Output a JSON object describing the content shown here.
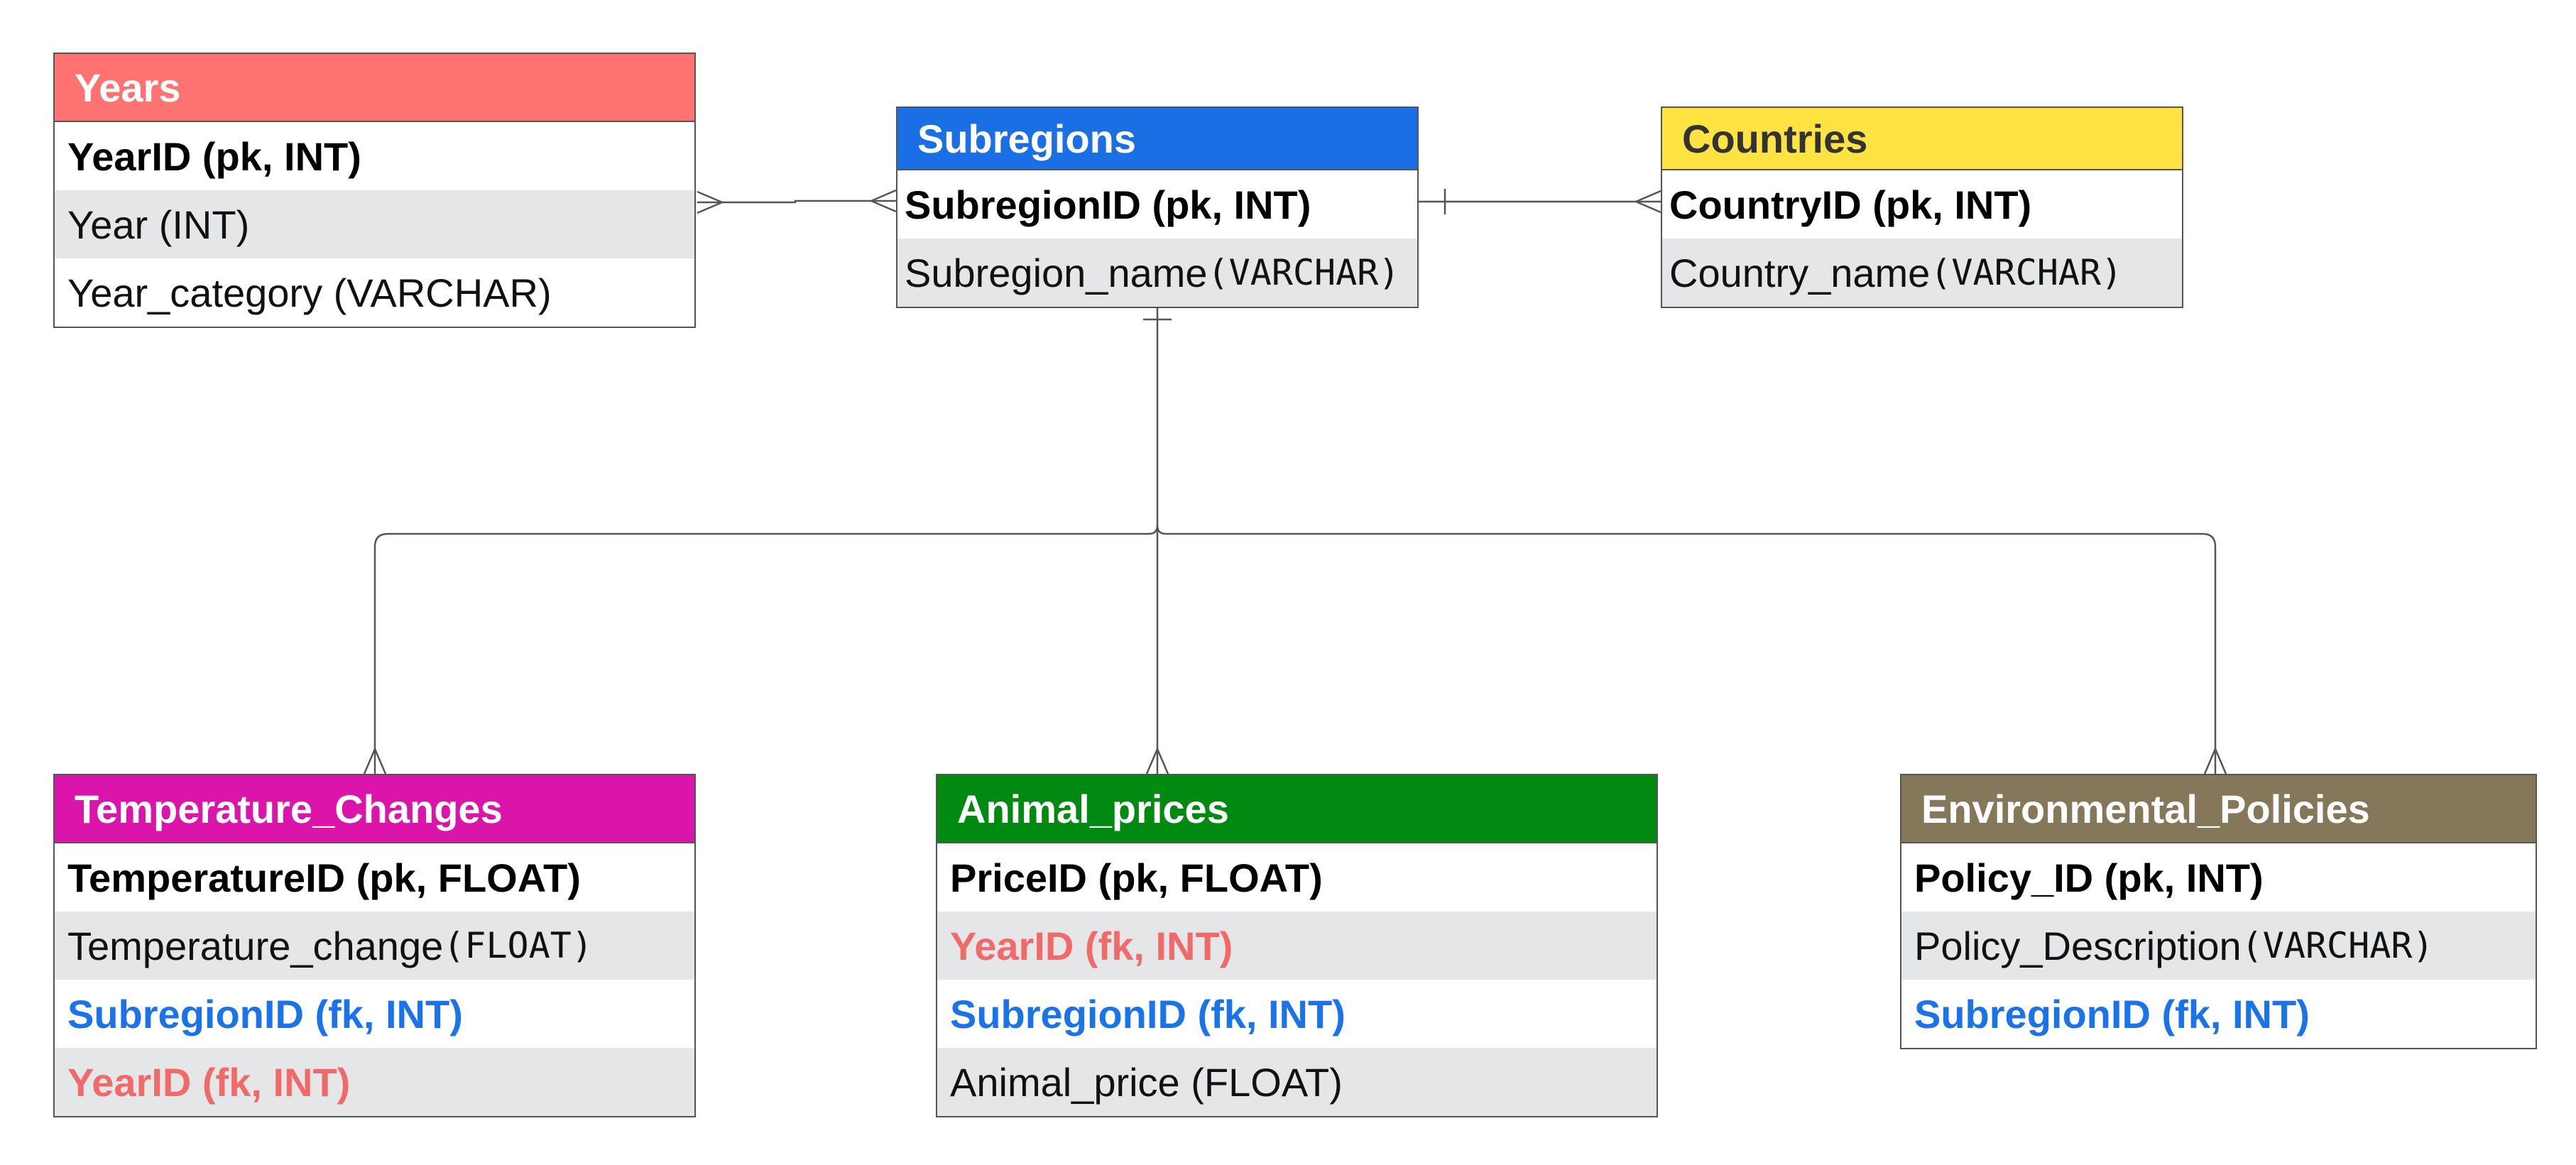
{
  "colors": {
    "years": "#ff7272",
    "subregions": "#1a6fe5",
    "countries": "#ffe342",
    "temperature_changes": "#db15a9",
    "animal_prices": "#008a12",
    "environmental_policies": "#85775a",
    "fk_blue": "#1a73e8",
    "fk_red": "#f06a6a",
    "alt_row": "#e5e6e8",
    "connector": "#555555"
  },
  "entities": {
    "years": {
      "title": "Years",
      "fields": {
        "yearid": "YearID (pk, INT)",
        "year": "Year (INT)",
        "year_category": "Year_category (VARCHAR)"
      }
    },
    "subregions": {
      "title": "Subregions",
      "fields": {
        "subregionid": "SubregionID (pk, INT)",
        "subregion_name": "Subregion_name",
        "subregion_name_type": "(VARCHAR)"
      }
    },
    "countries": {
      "title": "Countries",
      "fields": {
        "countryid": "CountryID (pk, INT)",
        "country_name": "Country_name",
        "country_name_type": "(VARCHAR)"
      }
    },
    "temperature_changes": {
      "title": "Temperature_Changes",
      "fields": {
        "temperatureid": "TemperatureID (pk, FLOAT)",
        "temperature_change": "Temperature_change ",
        "temperature_change_type": "(FLOAT)",
        "subregionid": "SubregionID (fk, INT)",
        "yearid": "YearID (fk, INT)"
      }
    },
    "animal_prices": {
      "title": "Animal_prices",
      "fields": {
        "priceid": "PriceID (pk, FLOAT)",
        "yearid": "YearID (fk, INT)",
        "subregionid": "SubregionID (fk, INT)",
        "animal_price": "Animal_price (FLOAT)"
      }
    },
    "environmental_policies": {
      "title": "Environmental_Policies",
      "fields": {
        "policy_id": "Policy_ID (pk, INT)",
        "policy_description": "Policy_Description ",
        "policy_description_type": "(VARCHAR)",
        "subregionid": "SubregionID (fk, INT)"
      }
    }
  },
  "relationships": [
    {
      "from": "Years",
      "to": "Subregions",
      "from_end": "many",
      "to_end": "many"
    },
    {
      "from": "Subregions",
      "to": "Countries",
      "from_end": "one",
      "to_end": "many"
    },
    {
      "from": "Subregions",
      "to": "Temperature_Changes",
      "from_end": "one",
      "to_end": "many"
    },
    {
      "from": "Subregions",
      "to": "Animal_prices",
      "from_end": "one",
      "to_end": "many"
    },
    {
      "from": "Subregions",
      "to": "Environmental_Policies",
      "from_end": "one",
      "to_end": "many"
    }
  ]
}
